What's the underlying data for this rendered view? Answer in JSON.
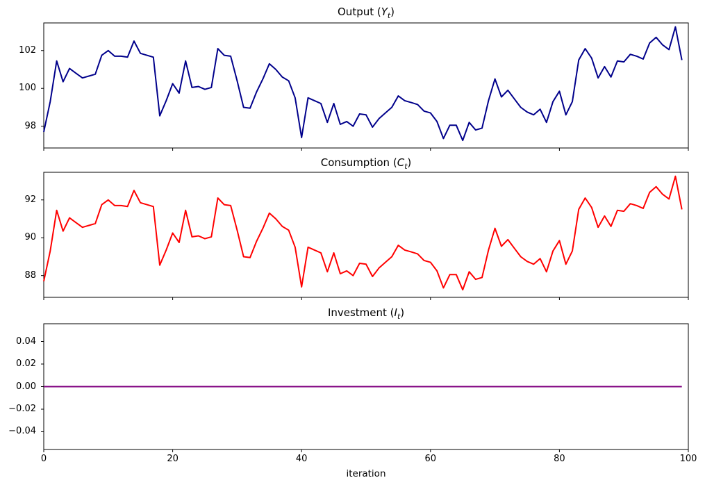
{
  "figure": {
    "background": "#ffffff",
    "spine_color": "#000000",
    "text_color": "#000000"
  },
  "chart_data": [
    {
      "type": "line",
      "series": "output",
      "title": {
        "text": "Output",
        "open": " (",
        "var": "Y",
        "sub": "t",
        "close": ")"
      },
      "color": "#00008B",
      "line_width": 2,
      "x_start": 0,
      "x_step": 1,
      "xlim": [
        0,
        100
      ],
      "ylim": [
        96.85,
        103.46
      ],
      "xtick_values": [
        0,
        20,
        40,
        60,
        80,
        100
      ],
      "xtick_labels": null,
      "ytick_values": [
        98,
        100,
        102
      ],
      "ytick_labels": [
        "98",
        "100",
        "102"
      ],
      "grid": false,
      "legend": null,
      "values": [
        97.7,
        99.3,
        101.45,
        100.35,
        101.05,
        100.8,
        100.55,
        100.65,
        100.75,
        101.75,
        102.0,
        101.7,
        101.7,
        101.65,
        102.5,
        101.85,
        101.75,
        101.65,
        98.55,
        99.35,
        100.25,
        99.75,
        101.45,
        100.05,
        100.1,
        99.95,
        100.05,
        102.1,
        101.75,
        101.7,
        100.4,
        99.0,
        98.95,
        99.8,
        100.5,
        101.3,
        101.0,
        100.6,
        100.4,
        99.5,
        97.4,
        99.5,
        99.35,
        99.2,
        98.2,
        99.2,
        98.1,
        98.25,
        98.0,
        98.65,
        98.6,
        97.95,
        98.4,
        98.7,
        99.0,
        99.6,
        99.35,
        99.25,
        99.15,
        98.8,
        98.7,
        98.25,
        97.35,
        98.05,
        98.05,
        97.25,
        98.2,
        97.8,
        97.9,
        99.35,
        100.5,
        99.55,
        99.9,
        99.45,
        99.0,
        98.75,
        98.6,
        98.9,
        98.2,
        99.3,
        99.85,
        98.6,
        99.3,
        101.5,
        102.1,
        101.6,
        100.55,
        101.15,
        100.6,
        101.45,
        101.4,
        101.8,
        101.7,
        101.55,
        102.4,
        102.7,
        102.3,
        102.05,
        103.25,
        101.5
      ]
    },
    {
      "type": "line",
      "series": "consumption",
      "title": {
        "text": "Consumption",
        "open": " (",
        "var": "C",
        "sub": "t",
        "close": ")"
      },
      "color": "#FF0000",
      "line_width": 2,
      "x_start": 0,
      "x_step": 1,
      "xlim": [
        0,
        100
      ],
      "ylim": [
        86.85,
        93.46
      ],
      "xtick_values": [
        0,
        20,
        40,
        60,
        80,
        100
      ],
      "xtick_labels": null,
      "ytick_values": [
        88,
        90,
        92
      ],
      "ytick_labels": [
        "88",
        "90",
        "92"
      ],
      "grid": false,
      "legend": null,
      "values": [
        87.7,
        89.3,
        91.45,
        90.35,
        91.05,
        90.8,
        90.55,
        90.65,
        90.75,
        91.75,
        92.0,
        91.7,
        91.7,
        91.65,
        92.5,
        91.85,
        91.75,
        91.65,
        88.55,
        89.35,
        90.25,
        89.75,
        91.45,
        90.05,
        90.1,
        89.95,
        90.05,
        92.1,
        91.75,
        91.7,
        90.4,
        89.0,
        88.95,
        89.8,
        90.5,
        91.3,
        91.0,
        90.6,
        90.4,
        89.5,
        87.4,
        89.5,
        89.35,
        89.2,
        88.2,
        89.2,
        88.1,
        88.25,
        88.0,
        88.65,
        88.6,
        87.95,
        88.4,
        88.7,
        89.0,
        89.6,
        89.35,
        89.25,
        89.15,
        88.8,
        88.7,
        88.25,
        87.35,
        88.05,
        88.05,
        87.25,
        88.2,
        87.8,
        87.9,
        89.35,
        90.5,
        89.55,
        89.9,
        89.45,
        89.0,
        88.75,
        88.6,
        88.9,
        88.2,
        89.3,
        89.85,
        88.6,
        89.3,
        91.5,
        92.1,
        91.6,
        90.55,
        91.15,
        90.6,
        91.45,
        91.4,
        91.8,
        91.7,
        91.55,
        92.4,
        92.7,
        92.3,
        92.05,
        93.25,
        91.5
      ]
    },
    {
      "type": "line",
      "series": "investment",
      "title": {
        "text": "Investment",
        "open": " (",
        "var": "I",
        "sub": "t",
        "close": ")"
      },
      "color": "#800080",
      "line_width": 2,
      "x_start": 0,
      "x_step": 1,
      "xlim": [
        0,
        100
      ],
      "ylim": [
        -0.0557,
        0.0557
      ],
      "xtick_values": [
        0,
        20,
        40,
        60,
        80,
        100
      ],
      "xtick_labels": [
        "0",
        "20",
        "40",
        "60",
        "80",
        "100"
      ],
      "ytick_values": [
        0.04,
        0.02,
        0.0,
        -0.02,
        -0.04
      ],
      "ytick_labels": [
        "0.04",
        "0.02",
        "0.00",
        "−0.02",
        "−0.04"
      ],
      "grid": false,
      "legend": null,
      "xlabel": "iteration",
      "constant_value": 0.0,
      "n_points": 100
    }
  ]
}
